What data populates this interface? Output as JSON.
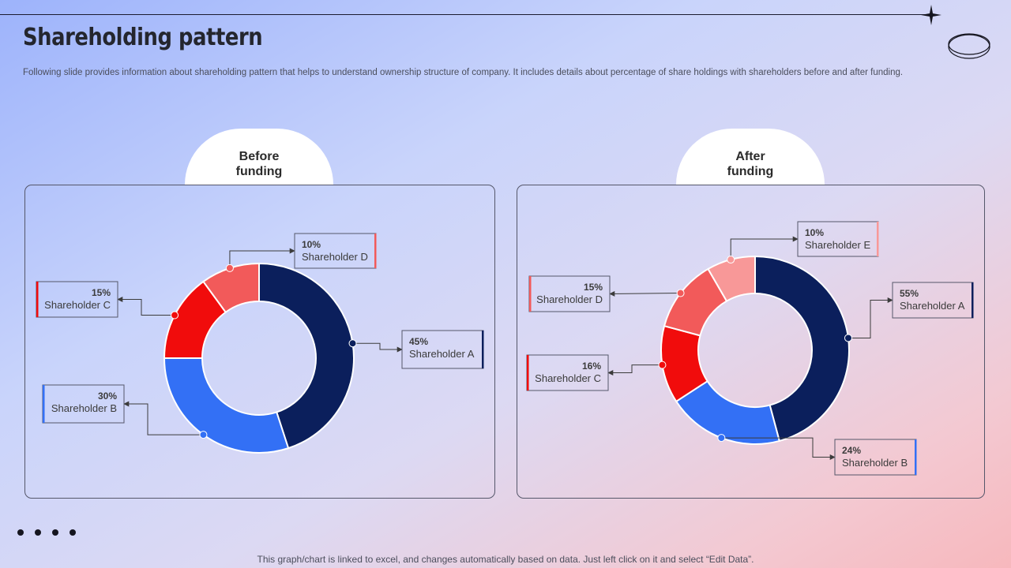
{
  "header": {
    "title": "Shareholding pattern",
    "subtitle": "Following slide provides information about shareholding pattern that helps to understand ownership structure of company. It includes details about percentage of share holdings with shareholders before and after funding."
  },
  "footer": {
    "note": "This graph/chart is linked to excel,  and changes automatically based on data. Just left click on it and select “Edit Data”."
  },
  "colors": {
    "navy": "#0b1f5c",
    "blue": "#3370f5",
    "red": "#f10c0c",
    "coral": "#f25a5a",
    "pink": "#f89898"
  },
  "chart_data": [
    {
      "type": "pie",
      "title": "Before funding",
      "categories": [
        "Shareholder A",
        "Shareholder B",
        "Shareholder C",
        "Shareholder D"
      ],
      "values": [
        45,
        30,
        15,
        10
      ],
      "labels": [
        "45%",
        "30%",
        "15%",
        "10%"
      ],
      "colors": [
        "#0b1f5c",
        "#3370f5",
        "#f10c0c",
        "#f25a5a"
      ],
      "donut": true
    },
    {
      "type": "pie",
      "title": "After funding",
      "categories": [
        "Shareholder A",
        "Shareholder B",
        "Shareholder C",
        "Shareholder D",
        "Shareholder E"
      ],
      "values": [
        55,
        24,
        16,
        15,
        10
      ],
      "labels": [
        "55%",
        "24%",
        "16%",
        "15%",
        "10%"
      ],
      "colors": [
        "#0b1f5c",
        "#3370f5",
        "#f10c0c",
        "#f25a5a",
        "#f89898"
      ],
      "donut": true
    }
  ]
}
